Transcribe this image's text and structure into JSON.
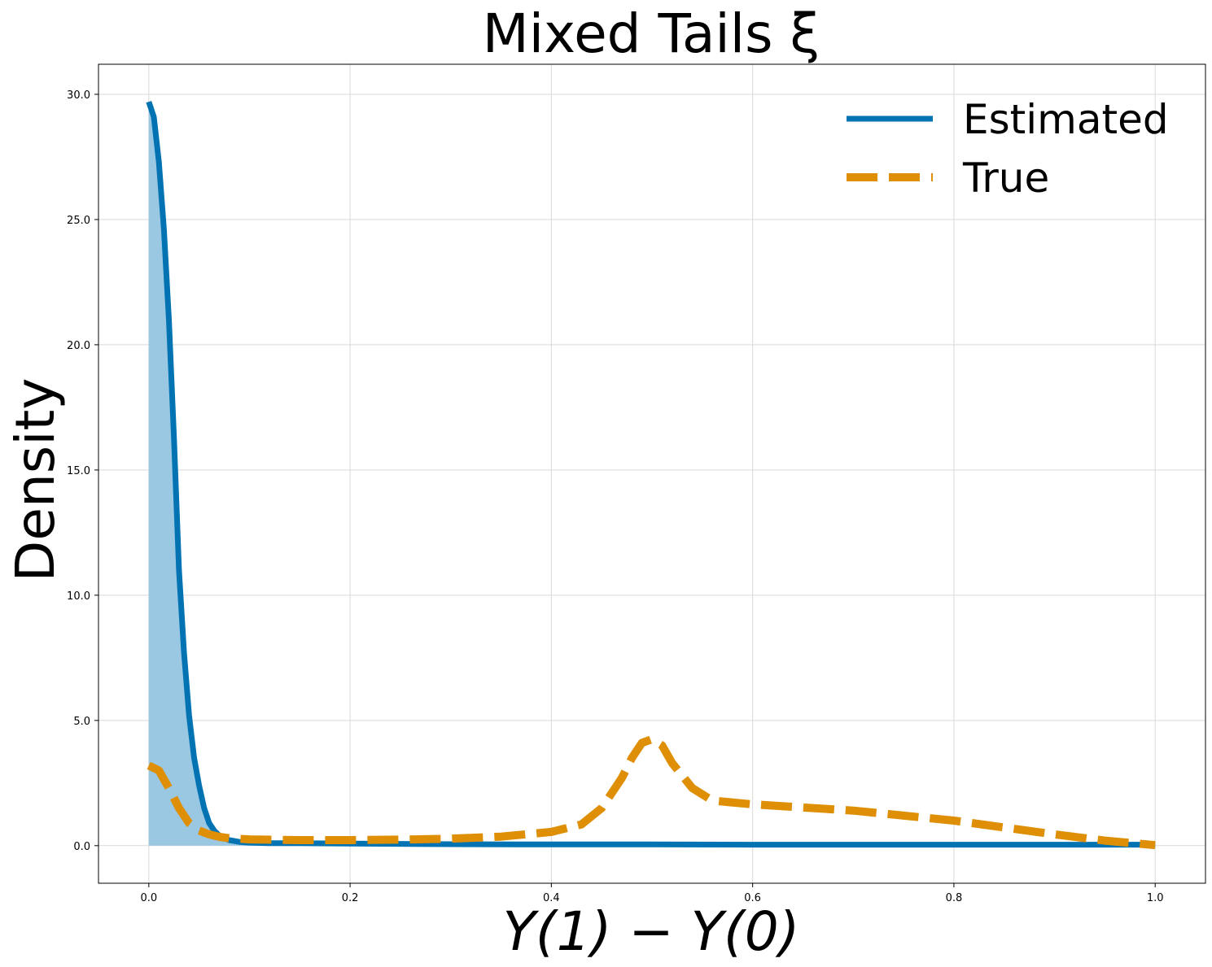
{
  "chart_data": {
    "type": "line",
    "title": "Mixed Tails ξ",
    "xlabel": "Y(1) − Y(0)",
    "ylabel": "Density",
    "xlim": [
      -0.05,
      1.05
    ],
    "ylim": [
      -1.5,
      31.2
    ],
    "xticks": [
      0.0,
      0.2,
      0.4,
      0.6,
      0.8,
      1.0
    ],
    "xtick_labels": [
      "0.0",
      "0.2",
      "0.4",
      "0.6",
      "0.8",
      "1.0"
    ],
    "yticks": [
      0,
      5,
      10,
      15,
      20,
      25,
      30
    ],
    "ytick_labels": [
      "0.0",
      "5.0",
      "10.0",
      "15.0",
      "20.0",
      "25.0",
      "30.0"
    ],
    "grid": true,
    "legend_position": "top-right",
    "series": [
      {
        "name": "Estimated",
        "style": "solid",
        "color": "#0173b2",
        "fill_under": true,
        "fill_color": "#9ac7e2",
        "x": [
          0.0,
          0.005,
          0.01,
          0.015,
          0.02,
          0.025,
          0.03,
          0.035,
          0.04,
          0.045,
          0.05,
          0.055,
          0.06,
          0.065,
          0.07,
          0.075,
          0.08,
          0.09,
          0.1,
          0.12,
          0.15,
          0.2,
          0.3,
          0.4,
          0.5,
          0.6,
          0.7,
          0.8,
          0.9,
          1.0
        ],
        "y": [
          29.7,
          29.1,
          27.3,
          24.6,
          21.0,
          16.3,
          11.0,
          7.7,
          5.2,
          3.5,
          2.4,
          1.5,
          0.9,
          0.6,
          0.4,
          0.3,
          0.22,
          0.15,
          0.12,
          0.1,
          0.1,
          0.08,
          0.06,
          0.05,
          0.05,
          0.04,
          0.04,
          0.04,
          0.04,
          0.04
        ]
      },
      {
        "name": "True",
        "style": "dashed",
        "color": "#de8f05",
        "fill_under": false,
        "x": [
          0.0,
          0.01,
          0.02,
          0.03,
          0.04,
          0.05,
          0.06,
          0.07,
          0.08,
          0.1,
          0.15,
          0.2,
          0.25,
          0.3,
          0.35,
          0.4,
          0.43,
          0.45,
          0.47,
          0.48,
          0.49,
          0.5,
          0.51,
          0.52,
          0.54,
          0.56,
          0.6,
          0.7,
          0.8,
          0.9,
          0.95,
          1.0
        ],
        "y": [
          3.2,
          3.0,
          2.3,
          1.5,
          0.9,
          0.6,
          0.45,
          0.35,
          0.3,
          0.25,
          0.22,
          0.22,
          0.24,
          0.28,
          0.36,
          0.55,
          0.85,
          1.5,
          2.7,
          3.5,
          4.1,
          4.25,
          4.0,
          3.3,
          2.3,
          1.8,
          1.65,
          1.4,
          1.0,
          0.45,
          0.2,
          0.02
        ]
      }
    ]
  }
}
